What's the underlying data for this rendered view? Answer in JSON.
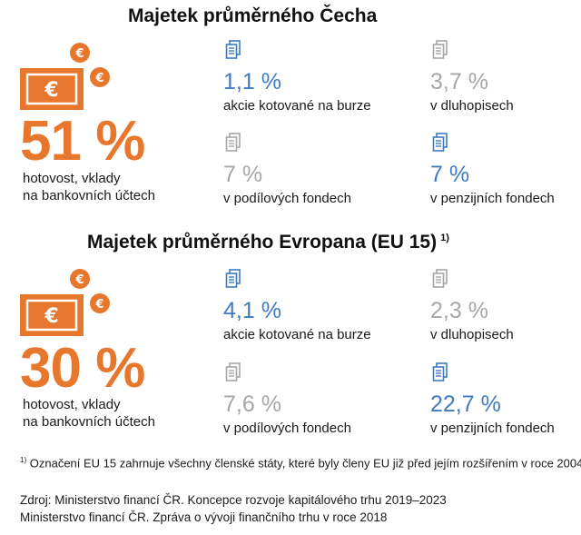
{
  "cz": {
    "title": "Majetek průměrného Čecha",
    "big_value": "51 %",
    "big_label_line1": "hotovost, vklady",
    "big_label_line2": "na bankovních účtech",
    "items": [
      {
        "value": "1,1 %",
        "label": "akcie kotované na burze",
        "color": "blue"
      },
      {
        "value": "3,7 %",
        "label": "v dluhopisech",
        "color": "gray"
      },
      {
        "value": "7 %",
        "label": "v podílových fondech",
        "color": "gray"
      },
      {
        "value": "7 %",
        "label": "v penzijních fondech",
        "color": "blue"
      }
    ]
  },
  "eu": {
    "title": "Majetek průměrného Evropana (EU 15)",
    "title_footnote_mark": "1)",
    "big_value": "30 %",
    "big_label_line1": "hotovost, vklady",
    "big_label_line2": "na bankovních účtech",
    "items": [
      {
        "value": "4,1 %",
        "label": "akcie kotované na burze",
        "color": "blue"
      },
      {
        "value": "2,3 %",
        "label": "v dluhopisech",
        "color": "gray"
      },
      {
        "value": "7,6 %",
        "label": "v podílových fondech",
        "color": "gray"
      },
      {
        "value": "22,7 %",
        "label": "v penzijních fondech",
        "color": "blue"
      }
    ]
  },
  "footnote": {
    "mark": "1)",
    "text": "Označení EU 15 zahrnuje všechny členské státy, které byly členy EU již před jejím rozšířením v roce 2004"
  },
  "source": {
    "line1": "Zdroj: Ministerstvo financí ČR. Koncepce rozvoje kapitálového trhu 2019–2023",
    "line2": "Ministerstvo financí ČR. Zpráva o vývoji finančního trhu v roce 2018"
  },
  "icons": {
    "money": "banknote-coins-icon",
    "document": "document-icon",
    "coin_symbol": "€"
  },
  "colors": {
    "orange": "#e8772e",
    "blue": "#3f7bc1",
    "gray": "#a7a7a7"
  }
}
